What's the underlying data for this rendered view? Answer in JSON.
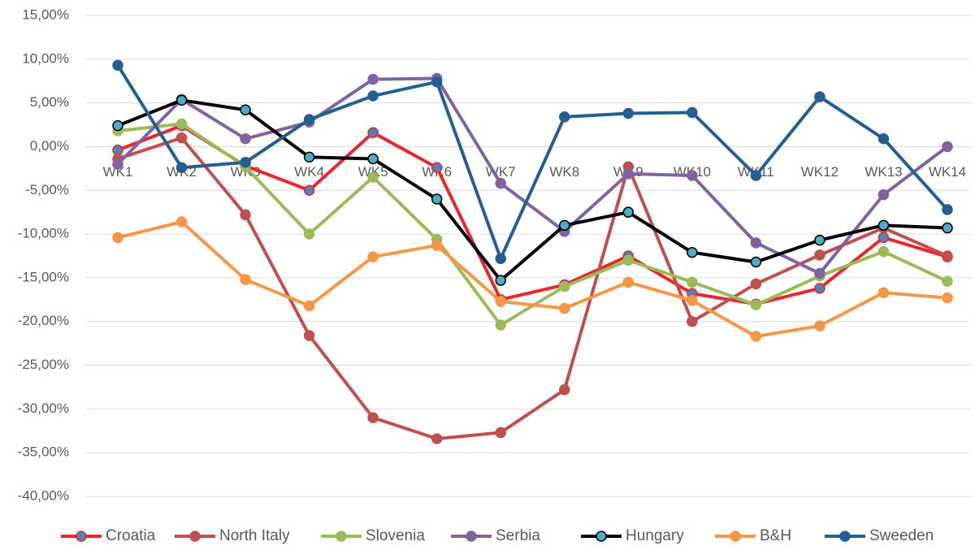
{
  "chart_data": {
    "type": "line",
    "categories": [
      "WK1",
      "WK2",
      "WK3",
      "WK4",
      "WK5",
      "WK6",
      "WK7",
      "WK8",
      "WK9",
      "WK10",
      "WK11",
      "WK12",
      "WK13",
      "WK14"
    ],
    "ylim": [
      -40,
      15
    ],
    "yticks": [
      {
        "value": -40,
        "label": "-40,00%"
      },
      {
        "value": -35,
        "label": "-35,00%"
      },
      {
        "value": -30,
        "label": "-30,00%"
      },
      {
        "value": -25,
        "label": "-25,00%"
      },
      {
        "value": -20,
        "label": "-20,00%"
      },
      {
        "value": -15,
        "label": "-15,00%"
      },
      {
        "value": -10,
        "label": "-10,00%"
      },
      {
        "value": -5,
        "label": "-5,00%"
      },
      {
        "value": 0,
        "label": "0,00%"
      },
      {
        "value": 5,
        "label": "5,00%"
      },
      {
        "value": 10,
        "label": "10,00%"
      },
      {
        "value": 15,
        "label": "15,00%"
      }
    ],
    "grid": true,
    "legend": "bottom",
    "series": [
      {
        "name": "Croatia",
        "color": "#e8262b",
        "marker_color": "#4f81bd",
        "values": [
          -0.4,
          2.4,
          -2.2,
          -5.0,
          1.6,
          -2.4,
          -17.5,
          -15.8,
          -12.5,
          -16.8,
          -18.0,
          -16.2,
          -10.4,
          -12.6
        ]
      },
      {
        "name": "North Italy",
        "color": "#c0504d",
        "marker_color": "#c0504d",
        "values": [
          -1.4,
          1.0,
          -7.8,
          -21.6,
          -31.0,
          -33.4,
          -32.7,
          -27.8,
          -2.3,
          -20.0,
          -15.7,
          -12.4,
          -9.3,
          -12.5
        ]
      },
      {
        "name": "Slovenia",
        "color": "#9bbb59",
        "marker_color": "#9bbb59",
        "values": [
          1.8,
          2.6,
          -2.3,
          -10.0,
          -3.5,
          -10.6,
          -20.4,
          -16.0,
          -13.0,
          -15.5,
          -18.1,
          -14.8,
          -12.0,
          -15.4
        ]
      },
      {
        "name": "Serbia",
        "color": "#8064a2",
        "marker_color": "#8064a2",
        "values": [
          -2.0,
          5.4,
          0.9,
          2.8,
          7.7,
          7.8,
          -4.2,
          -9.7,
          -3.1,
          -3.3,
          -11.0,
          -14.5,
          -5.5,
          0.0
        ]
      },
      {
        "name": "Hungary",
        "color": "#000000",
        "marker_color": "#4bacc6",
        "values": [
          2.4,
          5.3,
          4.2,
          -1.2,
          -1.4,
          -6.0,
          -15.3,
          -9.0,
          -7.5,
          -12.1,
          -13.2,
          -10.7,
          -9.0,
          -9.3
        ]
      },
      {
        "name": "B&H",
        "color": "#f79646",
        "marker_color": "#f79646",
        "values": [
          -10.4,
          -8.6,
          -15.2,
          -18.2,
          -12.6,
          -11.3,
          -17.7,
          -18.5,
          -15.5,
          -17.6,
          -21.7,
          -20.5,
          -16.7,
          -17.3
        ]
      },
      {
        "name": "Sweeden",
        "color": "#255e91",
        "marker_color": "#255e91",
        "values": [
          9.3,
          -2.4,
          -1.8,
          3.1,
          5.8,
          7.4,
          -12.8,
          3.4,
          3.8,
          3.9,
          -3.3,
          5.7,
          0.9,
          -7.2
        ]
      }
    ]
  }
}
